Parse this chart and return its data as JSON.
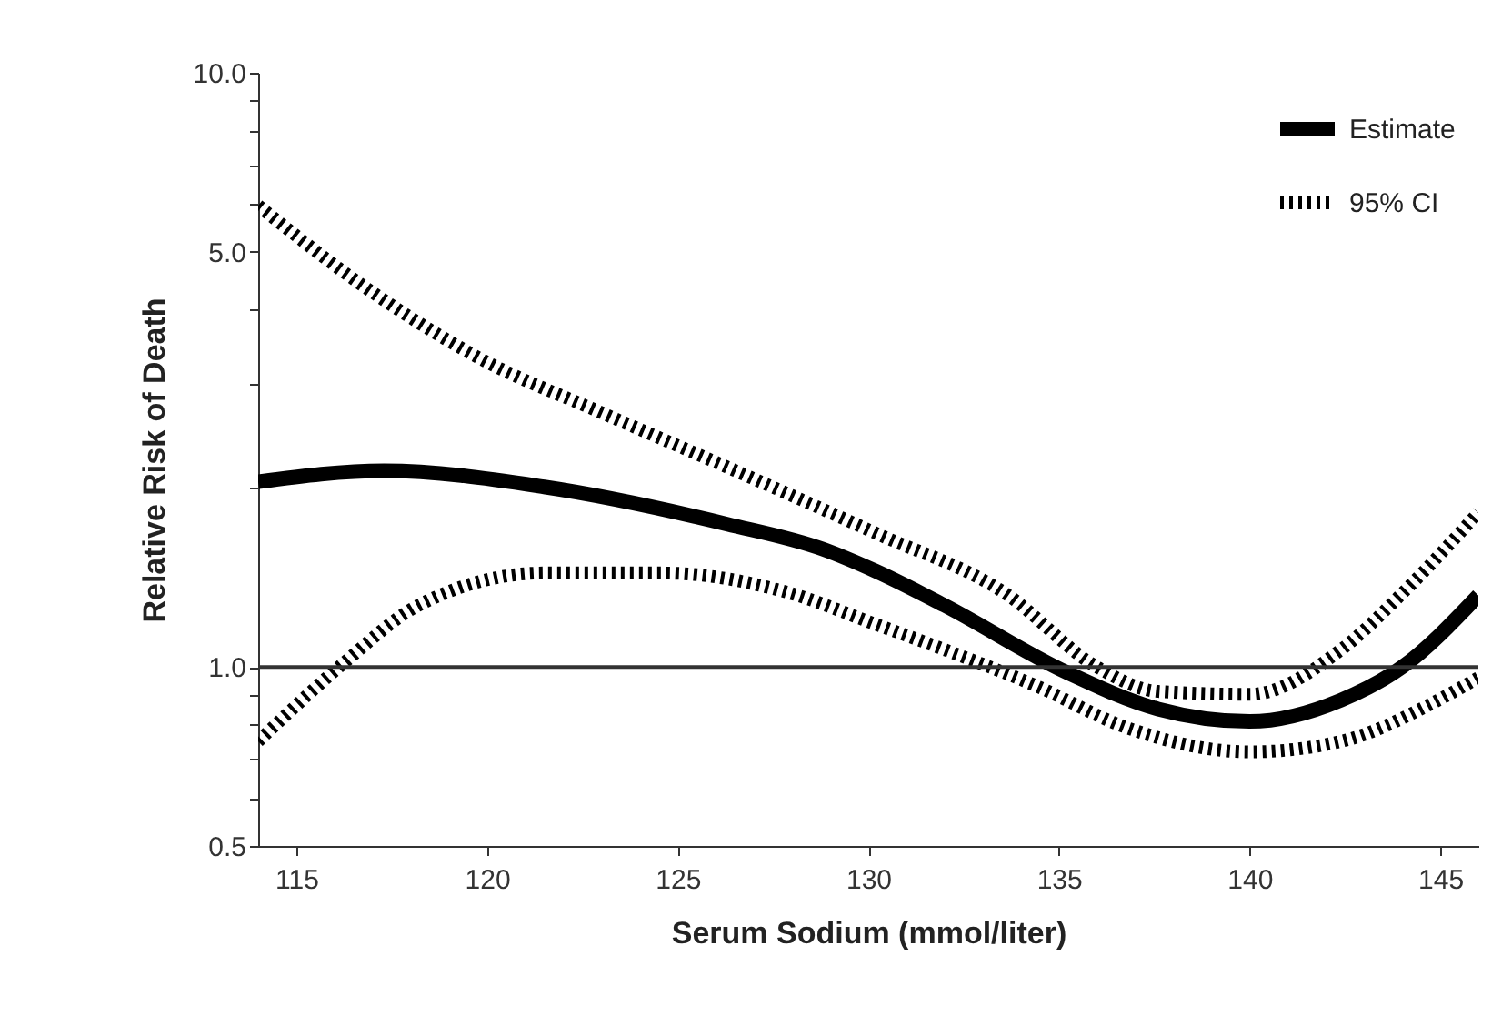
{
  "chart_data": {
    "type": "line",
    "xlabel": "Serum Sodium (mmol/liter)",
    "ylabel": "Relative Risk of Death",
    "log": "y",
    "xlim": [
      114,
      146
    ],
    "xticks": [
      115,
      120,
      125,
      130,
      135,
      140,
      145
    ],
    "ylim": [
      0.5,
      10
    ],
    "yticks": [
      {
        "value": 0.5,
        "label": "0.5"
      },
      {
        "value": 0.6,
        "label": null
      },
      {
        "value": 0.7,
        "label": null
      },
      {
        "value": 0.8,
        "label": null
      },
      {
        "value": 0.9,
        "label": null
      },
      {
        "value": 1,
        "label": "1.0"
      },
      {
        "value": 2,
        "label": null
      },
      {
        "value": 3,
        "label": null
      },
      {
        "value": 4,
        "label": null
      },
      {
        "value": 5,
        "label": "5.0"
      },
      {
        "value": 6,
        "label": null
      },
      {
        "value": 7,
        "label": null
      },
      {
        "value": 8,
        "label": null
      },
      {
        "value": 9,
        "label": null
      },
      {
        "value": 10,
        "label": "10.0"
      }
    ],
    "grid": false,
    "legend": "top right",
    "ref_lines": [
      {
        "axis": "y",
        "value": 1,
        "color": "#333333"
      }
    ],
    "series": [
      {
        "name": "Estimate",
        "color": "#000000",
        "line_style": "solid",
        "x": [
          114,
          117.3,
          121.5,
          126.3,
          128.8,
          130.2,
          132,
          135.2,
          137.6,
          140,
          142.4,
          144,
          146
        ],
        "values": [
          2.05,
          2.14,
          2.01,
          1.74,
          1.58,
          1.45,
          1.27,
          0.98,
          0.85,
          0.81,
          0.88,
          1.0,
          1.32
        ]
      },
      {
        "name": "95% CI",
        "color": "#000000",
        "line_style": "dotted",
        "x": [
          114,
          116.6,
          119.8,
          123,
          126.3,
          130.2,
          133.6,
          136,
          137.6,
          140,
          142.4,
          144,
          146
        ],
        "values": [
          5.98,
          4.45,
          3.31,
          2.68,
          2.17,
          1.68,
          1.33,
          1.0,
          0.91,
          0.9,
          1.07,
          1.33,
          1.82
        ]
      },
      {
        "color": "#000000",
        "line_style": "dotted",
        "x": [
          114,
          116.2,
          118.2,
          121.5,
          124.6,
          127.8,
          130.2,
          132,
          134.4,
          136.8,
          140,
          142.4,
          144.8,
          146
        ],
        "values": [
          0.75,
          1.01,
          1.27,
          1.44,
          1.44,
          1.34,
          1.18,
          1.07,
          0.93,
          0.79,
          0.72,
          0.75,
          0.87,
          0.96
        ]
      }
    ]
  }
}
